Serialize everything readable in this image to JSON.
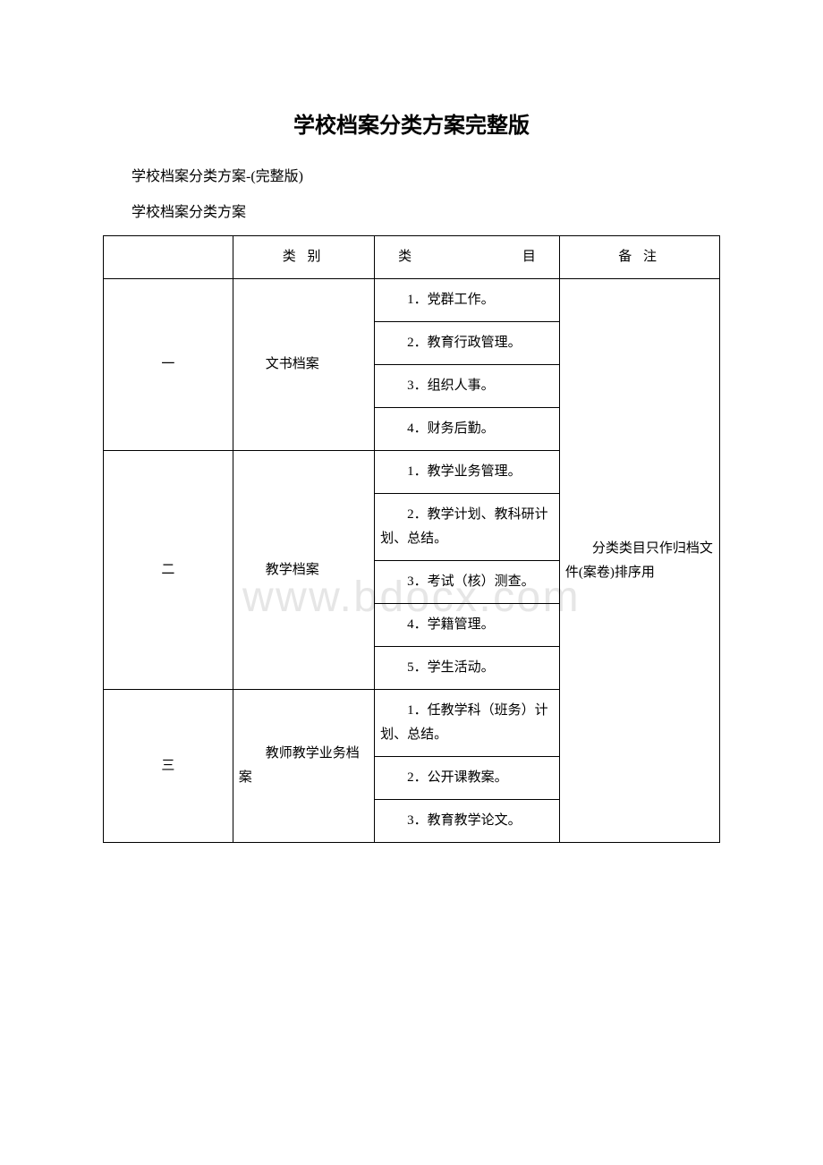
{
  "title": "学校档案分类方案完整版",
  "intro1": "学校档案分类方案-(完整版)",
  "intro2": "学校档案分类方案",
  "watermark": "www.bdocx.com",
  "headers": {
    "num": "",
    "category": "类 别",
    "item": "类目",
    "remark": "备 注"
  },
  "remark_text": "分类类目只作归档文件(案卷)排序用",
  "rows": [
    {
      "num": "一",
      "category": "文书档案",
      "items": [
        "1．党群工作。",
        "2．教育行政管理。",
        "3．组织人事。",
        "4．财务后勤。"
      ]
    },
    {
      "num": "二",
      "category": "教学档案",
      "items": [
        "1．教学业务管理。",
        "2．教学计划、教科研计划、总结。",
        "3．考试（核）测查。",
        "4．学籍管理。",
        "5．学生活动。"
      ]
    },
    {
      "num": "三",
      "category": "教师教学业务档案",
      "items": [
        "1．任教学科（班务）计划、总结。",
        "2．公开课教案。",
        "3．教育教学论文。"
      ]
    }
  ]
}
